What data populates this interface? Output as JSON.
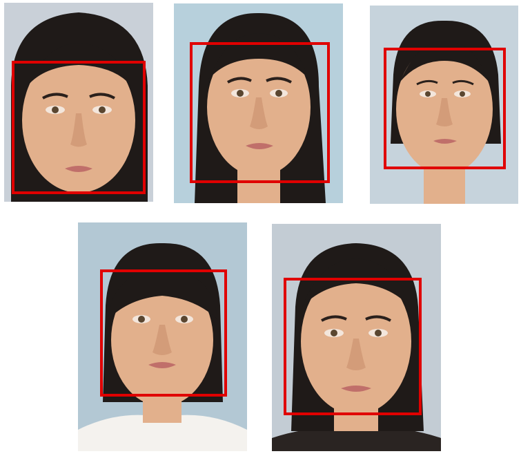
{
  "photos": [
    {
      "id": "photo-1",
      "background": "#c9d0d8",
      "has_face_box": true
    },
    {
      "id": "photo-2",
      "background": "#b7d0dc",
      "has_face_box": true
    },
    {
      "id": "photo-3",
      "background": "#c6d3dc",
      "has_face_box": true
    },
    {
      "id": "photo-4",
      "background": "#b3c8d4",
      "has_face_box": true
    },
    {
      "id": "photo-5",
      "background": "#c3ccd4",
      "has_face_box": true
    }
  ],
  "colors": {
    "face_box": "#e00000",
    "hair": "#1f1a18",
    "skin": "#e2b08c",
    "skin_shadow": "#c98f6c",
    "lips": "#c06f6a"
  }
}
